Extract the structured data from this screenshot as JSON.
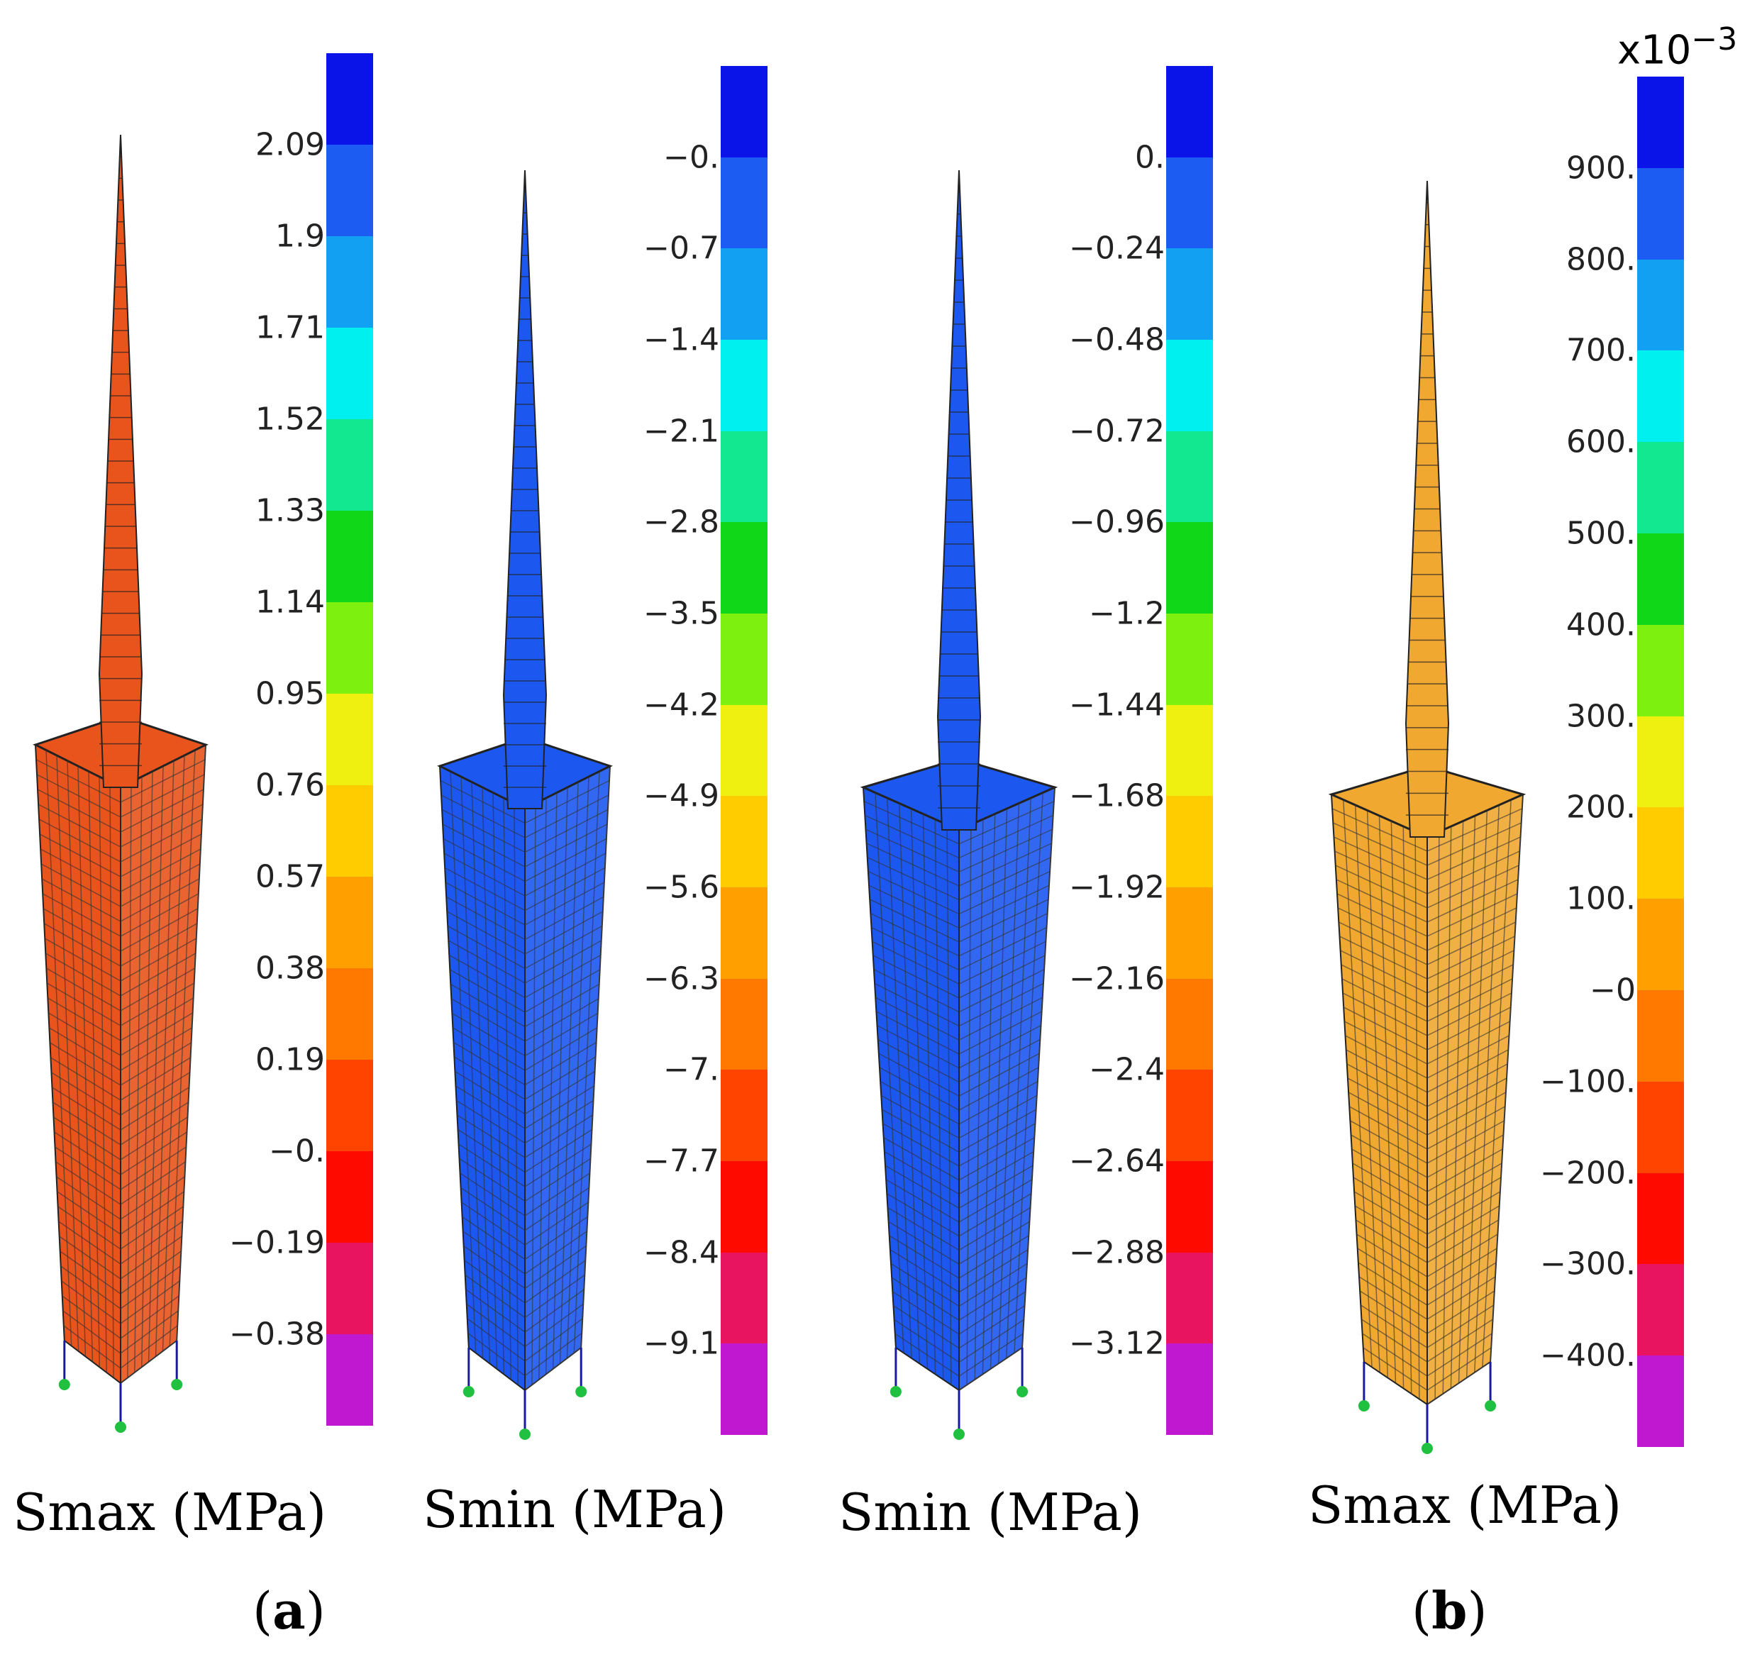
{
  "colorbar_colors": [
    "#0a14e8",
    "#1c5cf2",
    "#12a0f2",
    "#00f0f0",
    "#12e890",
    "#10d818",
    "#7ef010",
    "#f0f010",
    "#ffcc00",
    "#ffa000",
    "#ff7800",
    "#ff4400",
    "#ff0a00",
    "#e81460",
    "#c018d0"
  ],
  "panels": [
    {
      "caption": "Smax (MPa)",
      "model_color": "#e8541c",
      "ticks": [
        "2.09",
        "1.9",
        "1.71",
        "1.52",
        "1.33",
        "1.14",
        "0.95",
        "0.76",
        "0.57",
        "0.38",
        "0.19",
        "−0.",
        "−0.19",
        "−0.38"
      ]
    },
    {
      "caption": "Smin (MPa)",
      "model_color": "#1c58f0",
      "ticks": [
        "−0.",
        "−0.7",
        "−1.4",
        "−2.1",
        "−2.8",
        "−3.5",
        "−4.2",
        "−4.9",
        "−5.6",
        "−6.3",
        "−7.",
        "−7.7",
        "−8.4",
        "−9.1"
      ]
    },
    {
      "caption": "Smin (MPa)",
      "model_color": "#1c58f0",
      "ticks": [
        "0.",
        "−0.24",
        "−0.48",
        "−0.72",
        "−0.96",
        "−1.2",
        "−1.44",
        "−1.68",
        "−1.92",
        "−2.16",
        "−2.4",
        "−2.64",
        "−2.88",
        "−3.12"
      ]
    },
    {
      "caption": "Smax (MPa)",
      "model_color": "#f0a830",
      "multiplier_base": "x10",
      "multiplier_exp": "−3",
      "ticks": [
        "900.",
        "800.",
        "700.",
        "600.",
        "500.",
        "400.",
        "300.",
        "200.",
        "100.",
        "−0",
        "−100.",
        "−200.",
        "−300.",
        "−400."
      ]
    }
  ],
  "sublabels": {
    "a": "a",
    "b": "b"
  }
}
